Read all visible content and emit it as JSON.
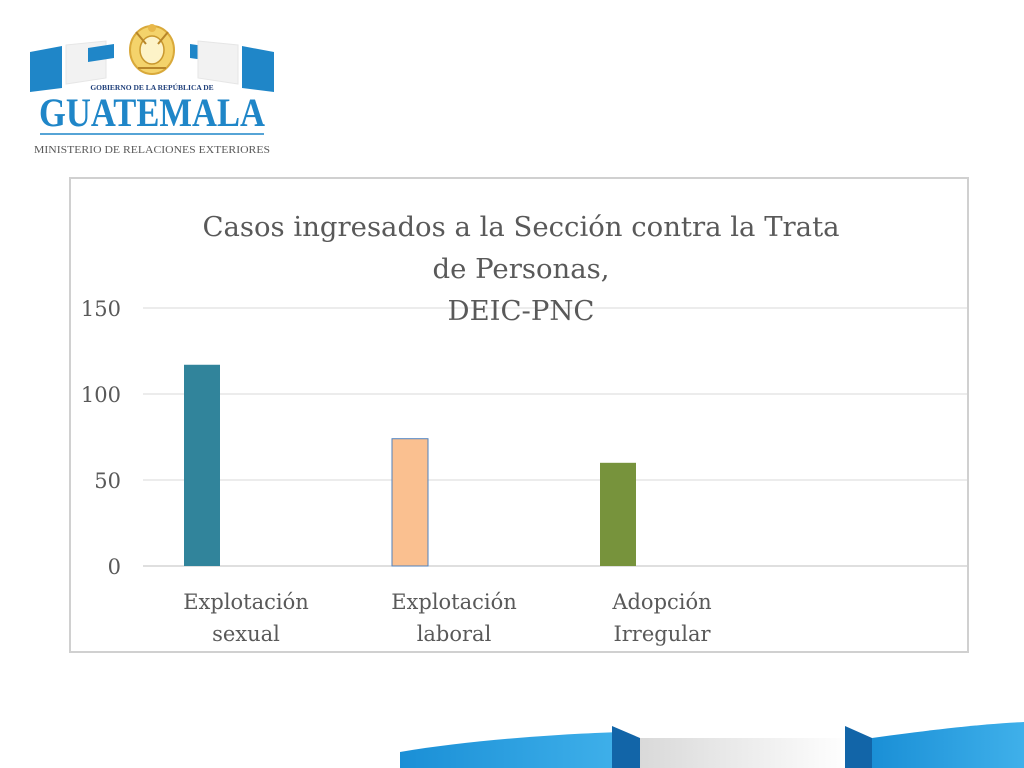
{
  "logo": {
    "top_text": "GOBIERNO DE LA REPÚBLICA DE",
    "country": "GUATEMALA",
    "ministry": "MINISTERIO DE RELACIONES EXTERIORES"
  },
  "colors": {
    "logo_blue": "#1f86c8",
    "logo_light_blue": "#5fb8e6",
    "grid": "#d9d9d9",
    "axis_text": "#595959"
  },
  "chart_data": {
    "type": "bar",
    "title": "Casos ingresados a la Sección contra la Trata de Personas,\nDEIC-PNC",
    "title_lines": [
      "Casos ingresados a la Sección contra la Trata",
      "de Personas,",
      "DEIC-PNC"
    ],
    "categories": [
      [
        "Explotación",
        "sexual"
      ],
      [
        "Explotación",
        "laboral"
      ],
      [
        "Adopción",
        "Irregular"
      ]
    ],
    "values": [
      117,
      74,
      60
    ],
    "colors": [
      "#31849b",
      "#fac090",
      "#77933c"
    ],
    "ylim": [
      0,
      150
    ],
    "yticks": [
      0,
      50,
      100,
      150
    ],
    "grid": true,
    "legend": "none",
    "xlabel": "",
    "ylabel": ""
  }
}
